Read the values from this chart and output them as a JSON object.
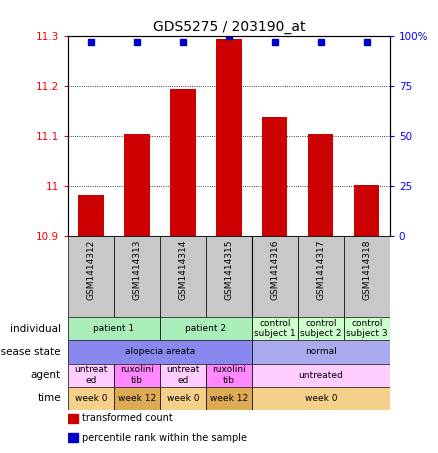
{
  "title": "GDS5275 / 203190_at",
  "samples": [
    "GSM1414312",
    "GSM1414313",
    "GSM1414314",
    "GSM1414315",
    "GSM1414316",
    "GSM1414317",
    "GSM1414318"
  ],
  "bar_values": [
    10.981,
    11.103,
    11.195,
    11.295,
    11.137,
    11.103,
    11.001
  ],
  "percentile_values": [
    97,
    97,
    97,
    100,
    97,
    97,
    97
  ],
  "ymin": 10.9,
  "ymax": 11.3,
  "yticks": [
    10.9,
    11.0,
    11.1,
    11.2,
    11.3
  ],
  "ytick_labels": [
    "10.9",
    "11",
    "11.1",
    "11.2",
    "11.3"
  ],
  "right_yticks": [
    0,
    25,
    50,
    75,
    100
  ],
  "right_ytick_labels": [
    "0",
    "25",
    "50",
    "75",
    "100%"
  ],
  "bar_color": "#cc0000",
  "dot_color": "#0000cc",
  "x_label_bg": "#c8c8c8",
  "annotation_rows": [
    {
      "label": "individual",
      "cells": [
        {
          "text": "patient 1",
          "span": 2,
          "bg": "#aaeebb"
        },
        {
          "text": "patient 2",
          "span": 2,
          "bg": "#aaeebb"
        },
        {
          "text": "control\nsubject 1",
          "span": 1,
          "bg": "#ccffcc"
        },
        {
          "text": "control\nsubject 2",
          "span": 1,
          "bg": "#ccffcc"
        },
        {
          "text": "control\nsubject 3",
          "span": 1,
          "bg": "#ccffcc"
        }
      ]
    },
    {
      "label": "disease state",
      "cells": [
        {
          "text": "alopecia areata",
          "span": 4,
          "bg": "#8888ee"
        },
        {
          "text": "normal",
          "span": 3,
          "bg": "#aaaaee"
        }
      ]
    },
    {
      "label": "agent",
      "cells": [
        {
          "text": "untreat\ned",
          "span": 1,
          "bg": "#ffccff"
        },
        {
          "text": "ruxolini\ntib",
          "span": 1,
          "bg": "#ff88ff"
        },
        {
          "text": "untreat\ned",
          "span": 1,
          "bg": "#ffccff"
        },
        {
          "text": "ruxolini\ntib",
          "span": 1,
          "bg": "#ff88ff"
        },
        {
          "text": "untreated",
          "span": 3,
          "bg": "#ffccff"
        }
      ]
    },
    {
      "label": "time",
      "cells": [
        {
          "text": "week 0",
          "span": 1,
          "bg": "#f5d08a"
        },
        {
          "text": "week 12",
          "span": 1,
          "bg": "#ddaa55"
        },
        {
          "text": "week 0",
          "span": 1,
          "bg": "#f5d08a"
        },
        {
          "text": "week 12",
          "span": 1,
          "bg": "#ddaa55"
        },
        {
          "text": "week 0",
          "span": 3,
          "bg": "#f5d08a"
        }
      ]
    }
  ],
  "legend": [
    {
      "color": "#cc0000",
      "label": "transformed count"
    },
    {
      "color": "#0000cc",
      "label": "percentile rank within the sample"
    }
  ]
}
